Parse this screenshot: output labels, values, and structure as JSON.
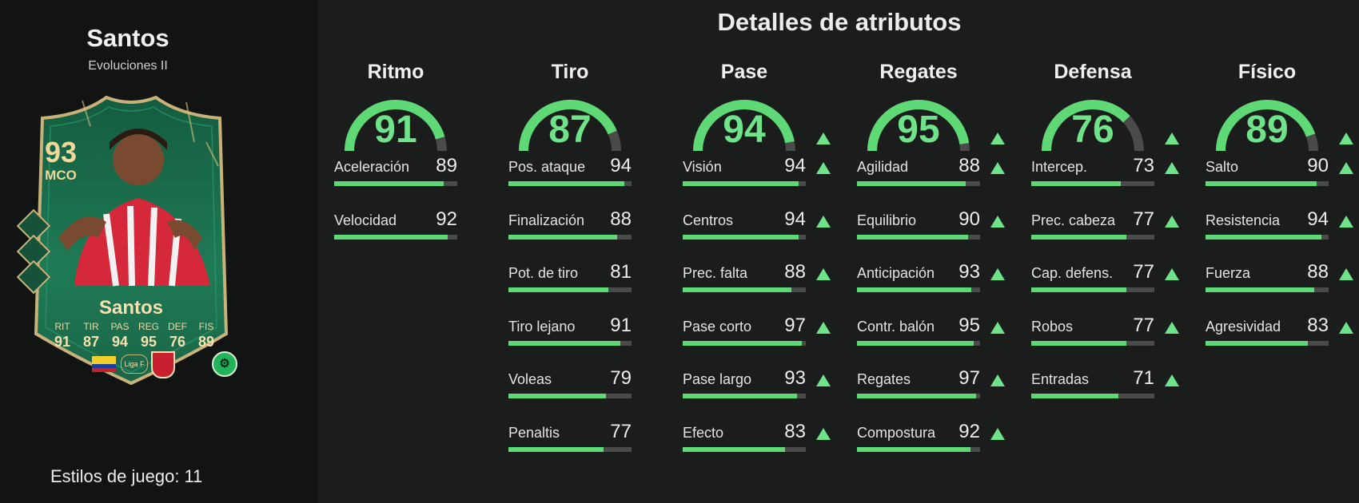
{
  "player": {
    "name": "Santos",
    "subtitle": "Evoluciones II",
    "playstyles_label": "Estilos de juego:",
    "playstyles_count": "11"
  },
  "card": {
    "rating": "93",
    "position": "MCO",
    "name": "Santos",
    "league": "Liga F",
    "stats": [
      {
        "label": "RIT",
        "value": "91"
      },
      {
        "label": "TIR",
        "value": "87"
      },
      {
        "label": "PAS",
        "value": "94"
      },
      {
        "label": "REG",
        "value": "95"
      },
      {
        "label": "DEF",
        "value": "76"
      },
      {
        "label": "FIS",
        "value": "89"
      }
    ]
  },
  "details_title": "Detalles de atributos",
  "colors": {
    "accent": "#6fe38a",
    "bar_fill": "#5fd876",
    "bar_track": "#4a4a4a",
    "card_green": "#1f6a4a",
    "card_gold": "#c9b27a"
  },
  "categories": [
    {
      "name": "Ritmo",
      "value": "91",
      "upgraded": false,
      "attributes": [
        {
          "label": "Aceleración",
          "value": "89",
          "upgraded": false
        },
        {
          "label": "Velocidad",
          "value": "92",
          "upgraded": false
        }
      ]
    },
    {
      "name": "Tiro",
      "value": "87",
      "upgraded": false,
      "attributes": [
        {
          "label": "Pos. ataque",
          "value": "94",
          "upgraded": false
        },
        {
          "label": "Finalización",
          "value": "88",
          "upgraded": false
        },
        {
          "label": "Pot. de tiro",
          "value": "81",
          "upgraded": false
        },
        {
          "label": "Tiro lejano",
          "value": "91",
          "upgraded": false
        },
        {
          "label": "Voleas",
          "value": "79",
          "upgraded": false
        },
        {
          "label": "Penaltis",
          "value": "77",
          "upgraded": false
        }
      ]
    },
    {
      "name": "Pase",
      "value": "94",
      "upgraded": true,
      "attributes": [
        {
          "label": "Visión",
          "value": "94",
          "upgraded": true
        },
        {
          "label": "Centros",
          "value": "94",
          "upgraded": true
        },
        {
          "label": "Prec. falta",
          "value": "88",
          "upgraded": true
        },
        {
          "label": "Pase corto",
          "value": "97",
          "upgraded": true
        },
        {
          "label": "Pase largo",
          "value": "93",
          "upgraded": true
        },
        {
          "label": "Efecto",
          "value": "83",
          "upgraded": true
        }
      ]
    },
    {
      "name": "Regates",
      "value": "95",
      "upgraded": true,
      "attributes": [
        {
          "label": "Agilidad",
          "value": "88",
          "upgraded": true
        },
        {
          "label": "Equilibrio",
          "value": "90",
          "upgraded": true
        },
        {
          "label": "Anticipación",
          "value": "93",
          "upgraded": true
        },
        {
          "label": "Contr. balón",
          "value": "95",
          "upgraded": true
        },
        {
          "label": "Regates",
          "value": "97",
          "upgraded": true
        },
        {
          "label": "Compostura",
          "value": "92",
          "upgraded": true
        }
      ]
    },
    {
      "name": "Defensa",
      "value": "76",
      "upgraded": true,
      "attributes": [
        {
          "label": "Intercep.",
          "value": "73",
          "upgraded": true
        },
        {
          "label": "Prec. cabeza",
          "value": "77",
          "upgraded": true
        },
        {
          "label": "Cap. defens.",
          "value": "77",
          "upgraded": true
        },
        {
          "label": "Robos",
          "value": "77",
          "upgraded": true
        },
        {
          "label": "Entradas",
          "value": "71",
          "upgraded": true
        }
      ]
    },
    {
      "name": "Físico",
      "value": "89",
      "upgraded": true,
      "attributes": [
        {
          "label": "Salto",
          "value": "90",
          "upgraded": true
        },
        {
          "label": "Resistencia",
          "value": "94",
          "upgraded": true
        },
        {
          "label": "Fuerza",
          "value": "88",
          "upgraded": true
        },
        {
          "label": "Agresividad",
          "value": "83",
          "upgraded": true
        }
      ]
    }
  ]
}
